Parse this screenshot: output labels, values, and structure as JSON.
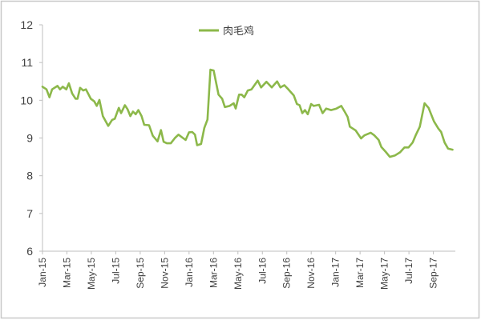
{
  "chart_data": {
    "type": "line",
    "title": "",
    "xlabel": "",
    "ylabel": "",
    "ylim": [
      6,
      12
    ],
    "yticks": [
      "6",
      "7",
      "8",
      "9",
      "10",
      "11",
      "12"
    ],
    "x_unit": "months since Jan-15",
    "xlim": [
      0,
      33.8
    ],
    "xtick_labels": [
      "Jan-15",
      "Mar-15",
      "May-15",
      "Jul-15",
      "Sep-15",
      "Nov-15",
      "Jan-16",
      "Mar-16",
      "May-16",
      "Jul-16",
      "Sep-16",
      "Nov-16",
      "Jan-17",
      "Mar-17",
      "May-17",
      "Jul-17",
      "Sep-17"
    ],
    "grid": false,
    "legend_position": "top-center",
    "colors": {
      "series": "#8cb84a",
      "axis": "#bfbfbf",
      "frame": "#c8c8c8"
    },
    "series": [
      {
        "name": "肉毛鸡",
        "x": [
          0.0,
          0.33,
          0.57,
          0.79,
          1.23,
          1.44,
          1.66,
          1.95,
          2.16,
          2.43,
          2.71,
          2.87,
          3.08,
          3.34,
          3.56,
          3.95,
          4.24,
          4.44,
          4.66,
          4.94,
          5.38,
          5.7,
          5.92,
          6.25,
          6.43,
          6.75,
          6.97,
          7.19,
          7.41,
          7.63,
          7.85,
          8.11,
          8.33,
          8.72,
          9.03,
          9.42,
          9.7,
          9.92,
          10.18,
          10.51,
          10.84,
          11.13,
          11.5,
          11.72,
          12.0,
          12.26,
          12.48,
          12.66,
          12.98,
          13.25,
          13.51,
          13.75,
          14.01,
          14.41,
          14.71,
          14.93,
          15.32,
          15.65,
          15.82,
          16.09,
          16.31,
          16.52,
          16.81,
          17.11,
          17.62,
          17.9,
          18.34,
          18.77,
          19.21,
          19.48,
          19.8,
          20.13,
          20.57,
          20.83,
          21.05,
          21.27,
          21.49,
          21.72,
          21.99,
          22.21,
          22.64,
          22.93,
          23.23,
          23.63,
          24.07,
          24.46,
          24.77,
          24.98,
          25.16,
          25.64,
          26.08,
          26.36,
          26.87,
          27.17,
          27.52,
          27.74,
          28.11,
          28.44,
          28.87,
          29.27,
          29.64,
          29.97,
          30.3,
          30.58,
          30.89,
          31.28,
          31.61,
          32.05,
          32.41,
          32.64,
          32.92,
          33.2,
          33.57
        ],
        "values": [
          10.36,
          10.29,
          10.08,
          10.29,
          10.38,
          10.29,
          10.36,
          10.29,
          10.45,
          10.18,
          10.04,
          10.04,
          10.33,
          10.26,
          10.29,
          10.04,
          9.97,
          9.85,
          10.01,
          9.58,
          9.32,
          9.48,
          9.51,
          9.8,
          9.66,
          9.87,
          9.76,
          9.58,
          9.7,
          9.63,
          9.74,
          9.58,
          9.35,
          9.34,
          9.06,
          8.91,
          9.21,
          8.9,
          8.86,
          8.86,
          9.0,
          9.09,
          9.0,
          8.95,
          9.15,
          9.16,
          9.09,
          8.81,
          8.84,
          9.27,
          9.49,
          10.81,
          10.79,
          10.15,
          10.04,
          9.82,
          9.85,
          9.92,
          9.78,
          10.15,
          10.15,
          10.08,
          10.26,
          10.29,
          10.52,
          10.34,
          10.49,
          10.34,
          10.5,
          10.34,
          10.4,
          10.29,
          10.13,
          9.9,
          9.87,
          9.66,
          9.74,
          9.63,
          9.9,
          9.85,
          9.88,
          9.66,
          9.78,
          9.74,
          9.78,
          9.85,
          9.68,
          9.56,
          9.3,
          9.2,
          8.99,
          9.07,
          9.14,
          9.07,
          8.95,
          8.76,
          8.63,
          8.5,
          8.54,
          8.62,
          8.75,
          8.75,
          8.88,
          9.09,
          9.3,
          9.92,
          9.8,
          9.44,
          9.25,
          9.16,
          8.88,
          8.72,
          8.69
        ]
      }
    ]
  }
}
